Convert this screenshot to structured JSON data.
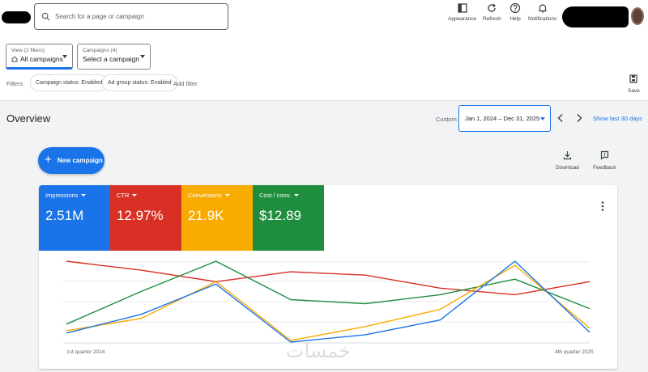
{
  "header": {
    "search_placeholder": "Search for a page or campaign",
    "tools": [
      {
        "label": "Appearance",
        "icon": "appearance-icon"
      },
      {
        "label": "Refresh",
        "icon": "refresh-icon"
      },
      {
        "label": "Help",
        "icon": "help-icon"
      },
      {
        "label": "Notifications",
        "icon": "bell-icon"
      }
    ]
  },
  "pickers": {
    "view": {
      "small": "View (2 filters)",
      "value": "All campaigns"
    },
    "campaigns": {
      "small": "Campaigns (4)",
      "value": "Select a campaign"
    }
  },
  "filters": {
    "label": "Filters",
    "chips": [
      "Campaign status: Enabled",
      "Ad group status: Enabled"
    ],
    "add_label": "Add filter",
    "save_label": "Save"
  },
  "overview": {
    "title": "Overview",
    "custom_label": "Custom",
    "date_range": "Jan 1, 2024 – Dec 31, 2025",
    "show_last": "Show last 30 days",
    "new_campaign": "New campaign",
    "download": "Download",
    "feedback": "Feedback"
  },
  "metrics": [
    {
      "label": "Impressions",
      "value": "2.51M",
      "color": "#1a73e8"
    },
    {
      "label": "CTR",
      "value": "12.97%",
      "color": "#d93025"
    },
    {
      "label": "Conversions",
      "value": "21.9K",
      "color": "#f9ab00"
    },
    {
      "label": "Cost / conv.",
      "value": "$12.89",
      "color": "#1e8e3e"
    }
  ],
  "chart_data": {
    "type": "line",
    "x_start_label": "1st quarter 2024",
    "x_end_label": "4th quarter 2025",
    "points": 8,
    "series": [
      {
        "metric": "CTR",
        "color": "#d93025",
        "values": [
          0.99,
          0.88,
          0.74,
          0.86,
          0.82,
          0.66,
          0.58,
          0.74
        ]
      },
      {
        "metric": "Cost / conv.",
        "color": "#1e8e3e",
        "values": [
          0.22,
          0.62,
          0.99,
          0.52,
          0.47,
          0.58,
          0.77,
          0.41
        ]
      },
      {
        "metric": "Conversions",
        "color": "#f9ab00",
        "values": [
          0.14,
          0.29,
          0.74,
          0.02,
          0.19,
          0.4,
          0.94,
          0.17
        ]
      },
      {
        "metric": "Impressions",
        "color": "#1a73e8",
        "values": [
          0.11,
          0.34,
          0.71,
          0.0,
          0.09,
          0.27,
          0.99,
          0.12
        ]
      }
    ]
  },
  "watermark": "خمسات"
}
